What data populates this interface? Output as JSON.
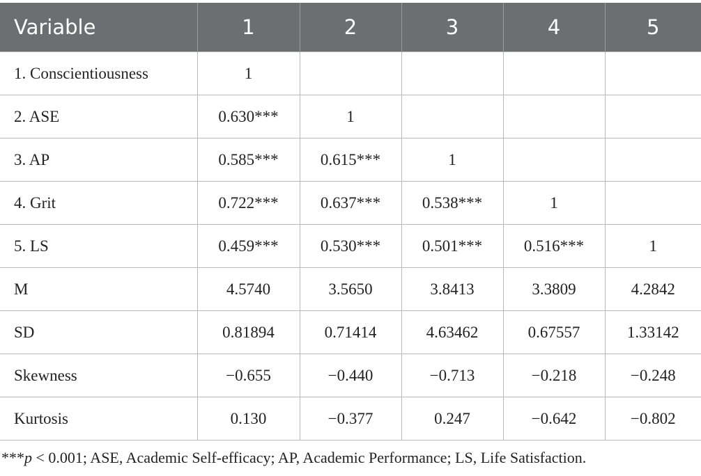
{
  "table": {
    "header": [
      "Variable",
      "1",
      "2",
      "3",
      "4",
      "5"
    ],
    "rows": [
      [
        "1. Conscientiousness",
        "1"
      ],
      [
        "2. ASE",
        "0.630***",
        "1"
      ],
      [
        "3. AP",
        "0.585***",
        "0.615***",
        "1"
      ],
      [
        "4. Grit",
        "0.722***",
        "0.637***",
        "0.538***",
        "1"
      ],
      [
        "5. LS",
        "0.459***",
        "0.530***",
        "0.501***",
        "0.516***",
        "1"
      ],
      [
        "M",
        "4.5740",
        "3.5650",
        "3.8413",
        "3.3809",
        "4.2842"
      ],
      [
        "SD",
        "0.81894",
        "0.71414",
        "4.63462",
        "0.67557",
        "1.33142"
      ],
      [
        "Skewness",
        "−0.655",
        "−0.440",
        "−0.713",
        "−0.218",
        "−0.248"
      ],
      [
        "Kurtosis",
        "0.130",
        "−0.377",
        "0.247",
        "−0.642",
        "−0.802"
      ]
    ]
  },
  "footnote": {
    "prefix": "***",
    "italic": "p",
    "text": " < 0.001; ASE, Academic Self-efficacy; AP, Academic Performance; LS, Life Satisfaction."
  }
}
